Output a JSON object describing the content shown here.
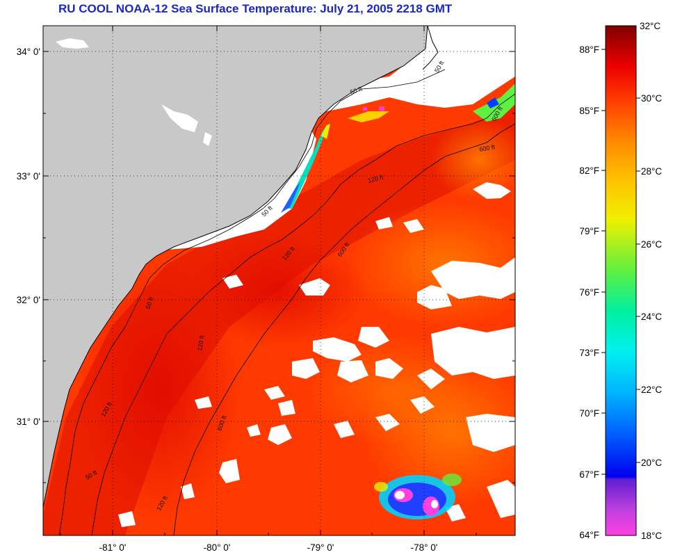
{
  "title": "RU COOL  NOAA-12  Sea Surface Temperature:  July 21, 2005 2218 GMT",
  "axes": {
    "lat_labels": [
      "34° 0'",
      "33° 0'",
      "32° 0'",
      "31° 0'"
    ],
    "lon_labels": [
      "-81° 0'",
      "-80° 0'",
      "-79° 0'",
      "-78° 0'"
    ]
  },
  "contour_labels": [
    "50 ft",
    "50 ft",
    "50 ft",
    "50 ft",
    "50 ft",
    "120 ft",
    "120 ft",
    "120 ft",
    "120 ft",
    "600 ft",
    "600 ft",
    "600 ft",
    "600 ft",
    "120 ft"
  ],
  "colorbar": {
    "fahrenheit_labels": [
      "88°F",
      "85°F",
      "82°F",
      "79°F",
      "76°F",
      "73°F",
      "70°F",
      "67°F",
      "64°F"
    ],
    "celsius_labels": [
      "32°C",
      "30°C",
      "28°C",
      "26°C",
      "24°C",
      "22°C",
      "20°C",
      "18°C"
    ],
    "min_c": 18,
    "max_c": 32,
    "colors": {
      "c18": "#ff40e0",
      "c19": "#9a40d0",
      "c20": "#0000f0",
      "c21": "#0060ff",
      "c22": "#00b0ff",
      "c23": "#00e8e8",
      "c24": "#00f0a0",
      "c25": "#60f040",
      "c26": "#e8f000",
      "c27": "#ffd000",
      "c28": "#ff9800",
      "c29": "#ff6000",
      "c30": "#ff2000",
      "c31": "#e00000",
      "c32": "#8a0000"
    }
  },
  "colors": {
    "title": "#1a26c8",
    "land": "#c8c8c8",
    "cloud": "#ffffff",
    "sea_base": "#ff3a00"
  }
}
